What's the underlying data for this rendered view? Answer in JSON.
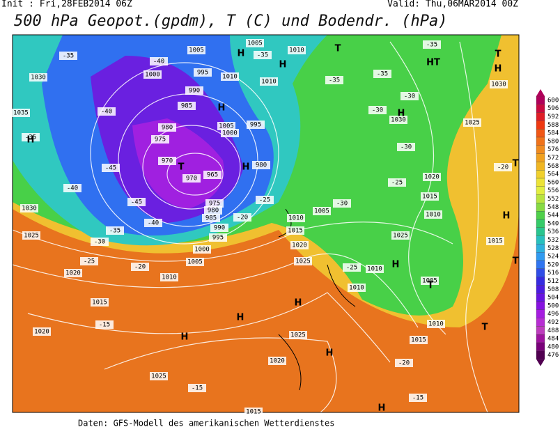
{
  "header": {
    "init": "Init : Fri,28FEB2014 06Z",
    "valid": "Valid: Thu,06MAR2014 00Z",
    "title": "500 hPa Geopot.(gpdm), T (C) und Bodendr. (hPa)"
  },
  "colorbar": {
    "labels": [
      "600",
      "596",
      "592",
      "588",
      "584",
      "580",
      "576",
      "572",
      "568",
      "564",
      "560",
      "556",
      "552",
      "548",
      "544",
      "540",
      "536",
      "532",
      "528",
      "524",
      "520",
      "516",
      "512",
      "508",
      "504",
      "500",
      "496",
      "492",
      "488",
      "484",
      "480",
      "476"
    ]
  },
  "map": {
    "labels": [
      "1005",
      "1005",
      "1010",
      "995",
      "1000",
      "990",
      "985",
      "980",
      "975",
      "970",
      "970",
      "965",
      "975",
      "980",
      "985",
      "990",
      "995",
      "1000",
      "1005",
      "1010",
      "1015",
      "1020",
      "1025",
      "1030",
      "1035",
      "1030",
      "1010",
      "1010",
      "1005",
      "1000",
      "995",
      "980",
      "1010",
      "1015",
      "1020",
      "1025",
      "1010",
      "1010",
      "1005",
      "1015",
      "1010",
      "1025",
      "1020",
      "1025",
      "1030",
      "1030",
      "1015",
      "1005",
      "1010",
      "1015",
      "1025",
      "1020",
      "1025",
      "1015",
      "1020",
      "-35",
      "-40",
      "-40",
      "-45",
      "-40",
      "-45",
      "-40",
      "-35",
      "-30",
      "-25",
      "-20",
      "-35",
      "-35",
      "-35",
      "-35",
      "-30",
      "-30",
      "-30",
      "-25",
      "-30",
      "-25",
      "-20",
      "-25",
      "-20",
      "-20",
      "-15",
      "-15",
      "-15",
      "-35",
      "H",
      "H",
      "T",
      "HT",
      "T",
      "H",
      "H",
      "T",
      "H",
      "H",
      "H",
      "H",
      "T",
      "H",
      "H",
      "H",
      "H",
      "H",
      "T",
      "H",
      "T",
      "T"
    ]
  },
  "footer": "Daten: GFS-Modell des amerikanischen Wetterdienstes"
}
